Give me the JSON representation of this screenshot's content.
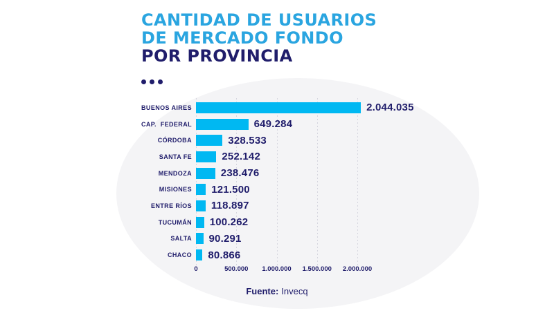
{
  "title": {
    "line1": "CANTIDAD DE USUARIOS",
    "line2": "DE MERCADO FONDO",
    "line3": "POR PROVINCIA"
  },
  "colors": {
    "title_cyan": "#2aa5e0",
    "bar_cyan": "#00b8f2",
    "navy": "#201d6b",
    "blob_gray": "#f4f4f6",
    "gridline_gray": "#d6d6df"
  },
  "chart_data": {
    "type": "bar",
    "orientation": "horizontal",
    "title": "CANTIDAD DE USUARIOS DE MERCADO FONDO POR PROVINCIA",
    "categories": [
      "BUENOS AIRES",
      "CAP.  FEDERAL",
      "CÓRDOBA",
      "SANTA FE",
      "MENDOZA",
      "MISIONES",
      "ENTRE RÍOS",
      "TUCUMÁN",
      "SALTA",
      "CHACO"
    ],
    "values": [
      2044035,
      649284,
      328533,
      252142,
      238476,
      121500,
      118897,
      100262,
      90291,
      80866
    ],
    "value_labels": [
      "2.044.035",
      "649.284",
      "328.533",
      "252.142",
      "238.476",
      "121.500",
      "118.897",
      "100.262",
      "90.291",
      "80.866"
    ],
    "x_ticks": [
      0,
      500000,
      1000000,
      1500000,
      2000000
    ],
    "x_tick_labels": [
      "0",
      "500.000",
      "1.000.000",
      "1.500.000",
      "2.000.000"
    ],
    "xlim": [
      0,
      2100000
    ],
    "grid": "dashed-vertical",
    "legend": "none"
  },
  "footer": {
    "source_label": "Fuente:",
    "source_value": "Invecq"
  }
}
